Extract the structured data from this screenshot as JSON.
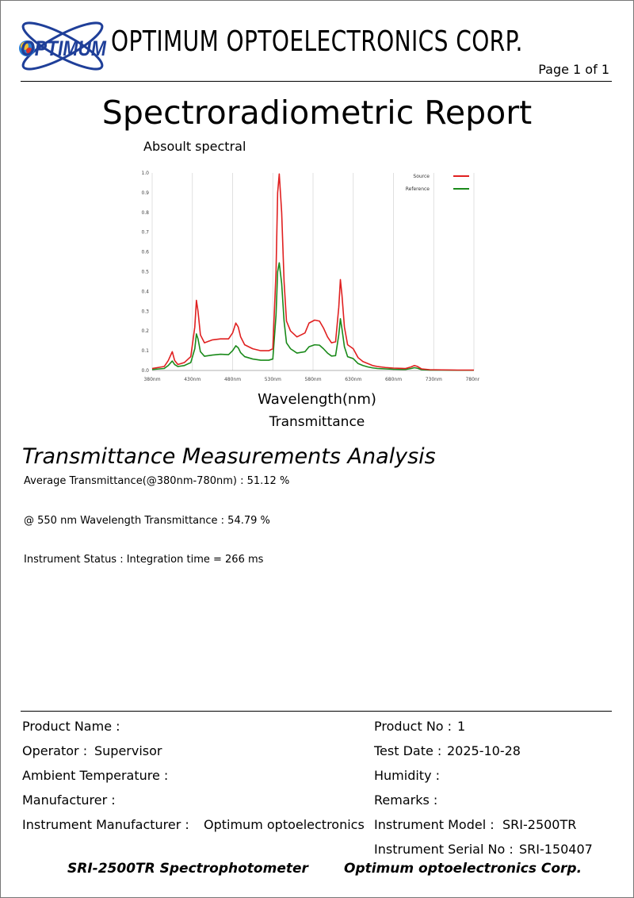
{
  "header": {
    "logo_text": "OPTIMUM",
    "company": "OPTIMUM OPTOELECTRONICS CORP.",
    "page": "Page 1 of 1"
  },
  "report": {
    "title": "Spectroradiometric Report",
    "chart_caption": "Absoult spectral",
    "xlabel": "Wavelength(nm)",
    "mode": "Transmittance"
  },
  "chart_data": {
    "type": "line",
    "title": "Absoult spectral",
    "xlabel": "Wavelength(nm)",
    "ylabel": "",
    "x_ticks": [
      "380nm",
      "430nm",
      "480nm",
      "530nm",
      "580nm",
      "630nm",
      "680nm",
      "730nm",
      "780nm"
    ],
    "y_ticks": [
      "0.0",
      "0.1",
      "0.2",
      "0.3",
      "0.4",
      "0.5",
      "0.6",
      "0.7",
      "0.8",
      "0.9",
      "1.0"
    ],
    "xlim": [
      380,
      780
    ],
    "ylim": [
      0,
      1.0
    ],
    "grid": true,
    "legend_position": "top-right",
    "series": [
      {
        "name": "Source",
        "color": "#e02020",
        "x": [
          380,
          395,
          400,
          405,
          408,
          412,
          420,
          428,
          433,
          435,
          437,
          440,
          445,
          455,
          465,
          475,
          480,
          484,
          487,
          490,
          495,
          505,
          515,
          525,
          530,
          534,
          536,
          538,
          541,
          544,
          547,
          552,
          560,
          570,
          575,
          582,
          588,
          593,
          598,
          603,
          608,
          612,
          614,
          616,
          619,
          623,
          630,
          636,
          642,
          648,
          654,
          660,
          670,
          680,
          695,
          702,
          706,
          710,
          715,
          725,
          740,
          760,
          780
        ],
        "y": [
          0.01,
          0.02,
          0.05,
          0.095,
          0.05,
          0.03,
          0.04,
          0.07,
          0.22,
          0.355,
          0.3,
          0.18,
          0.14,
          0.155,
          0.16,
          0.16,
          0.19,
          0.24,
          0.22,
          0.17,
          0.13,
          0.11,
          0.1,
          0.1,
          0.11,
          0.5,
          0.9,
          0.995,
          0.8,
          0.45,
          0.25,
          0.2,
          0.17,
          0.19,
          0.24,
          0.255,
          0.25,
          0.215,
          0.17,
          0.14,
          0.145,
          0.32,
          0.46,
          0.38,
          0.22,
          0.13,
          0.11,
          0.065,
          0.045,
          0.035,
          0.025,
          0.02,
          0.015,
          0.012,
          0.01,
          0.018,
          0.025,
          0.02,
          0.008,
          0.004,
          0.003,
          0.002,
          0.002
        ]
      },
      {
        "name": "Reference",
        "color": "#1a8a1a",
        "x": [
          380,
          395,
          400,
          405,
          408,
          412,
          420,
          428,
          433,
          435,
          437,
          440,
          445,
          455,
          465,
          475,
          480,
          484,
          487,
          490,
          495,
          505,
          515,
          525,
          530,
          534,
          536,
          538,
          541,
          544,
          547,
          552,
          560,
          570,
          575,
          582,
          588,
          593,
          598,
          603,
          608,
          612,
          614,
          616,
          619,
          623,
          630,
          636,
          642,
          648,
          654,
          660,
          670,
          680,
          695,
          702,
          706,
          710,
          715,
          725,
          740,
          760,
          780
        ],
        "y": [
          0.005,
          0.01,
          0.025,
          0.048,
          0.03,
          0.02,
          0.025,
          0.04,
          0.11,
          0.185,
          0.16,
          0.095,
          0.072,
          0.078,
          0.082,
          0.08,
          0.1,
          0.125,
          0.115,
          0.09,
          0.07,
          0.058,
          0.052,
          0.052,
          0.058,
          0.28,
          0.5,
          0.545,
          0.44,
          0.25,
          0.14,
          0.11,
          0.088,
          0.095,
          0.12,
          0.13,
          0.128,
          0.11,
          0.088,
          0.073,
          0.075,
          0.18,
          0.262,
          0.21,
          0.12,
          0.07,
          0.06,
          0.035,
          0.025,
          0.018,
          0.013,
          0.01,
          0.008,
          0.006,
          0.005,
          0.01,
          0.014,
          0.011,
          0.004,
          0.002,
          0.002,
          0.001,
          0.001
        ]
      }
    ]
  },
  "analysis": {
    "heading": "Transmittance Measurements Analysis",
    "average": "Average Transmittance(@380nm-780nm) : 51.12 %",
    "at550": "@ 550 nm Wavelength Transmittance : 54.79 %",
    "status": "Instrument Status : Integration time = 266 ms"
  },
  "info": {
    "product_name_label": "Product Name :",
    "product_name": "",
    "product_no_label": "Product No :",
    "product_no": "1",
    "operator_label": "Operator :",
    "operator": "Supervisor",
    "test_date_label": "Test Date :",
    "test_date": "2025-10-28",
    "ambient_label": "Ambient Temperature :",
    "ambient": "",
    "humidity_label": "Humidity :",
    "humidity": "",
    "manufacturer_label": "Manufacturer :",
    "manufacturer": "",
    "remarks_label": "Remarks :",
    "remarks": "",
    "inst_mfr_label": "Instrument Manufacturer :",
    "inst_mfr": "Optimum optoelectronics",
    "inst_model_label": "Instrument Model :",
    "inst_model": "SRI-2500TR",
    "inst_serial_label": "Instrument Serial No :",
    "inst_serial": "SRI-150407"
  },
  "footer": {
    "left": "SRI-2500TR Spectrophotometer",
    "right": "Optimum optoelectronics Corp."
  }
}
